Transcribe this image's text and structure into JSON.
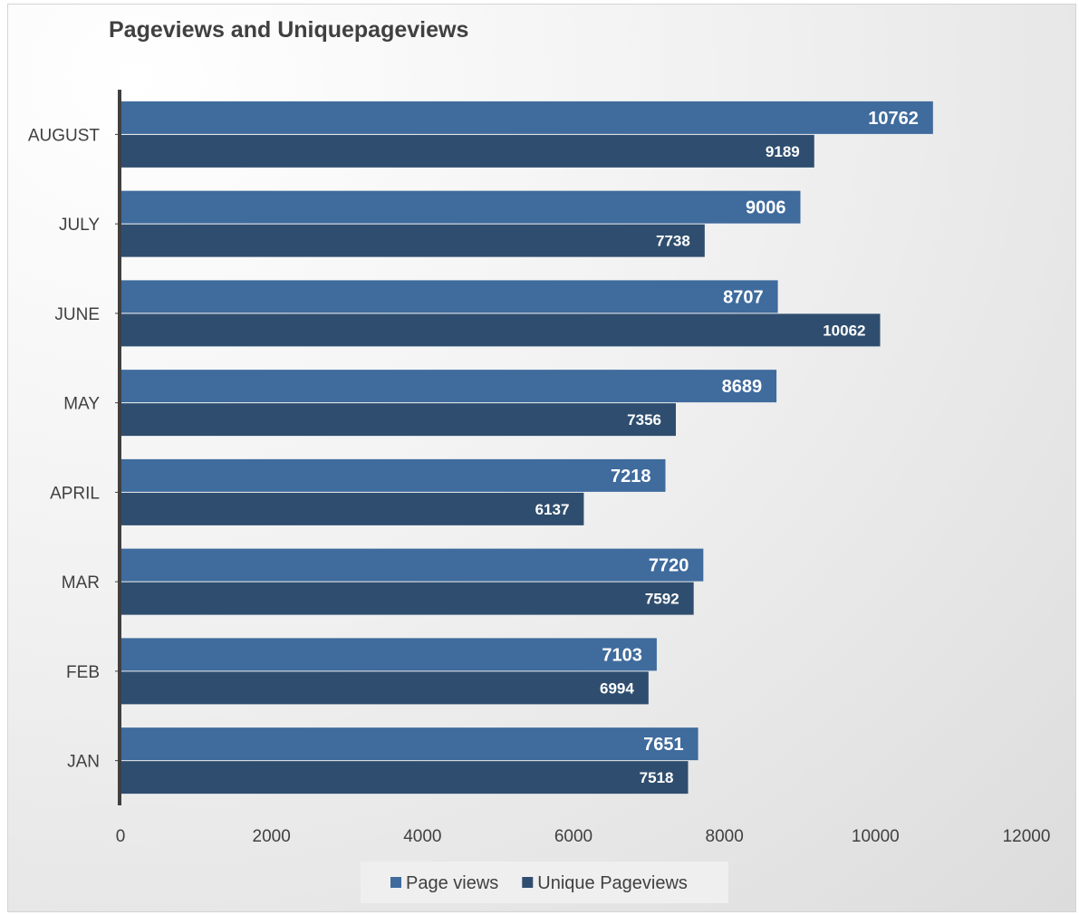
{
  "chart_data": {
    "type": "bar",
    "orientation": "horizontal",
    "title": "Pageviews and Uniquepageviews",
    "categories": [
      "JAN",
      "FEB",
      "MAR",
      "APRIL",
      "MAY",
      "JUNE",
      "JULY",
      "AUGUST"
    ],
    "series": [
      {
        "name": "Page views",
        "values": [
          7651,
          7103,
          7720,
          7218,
          8689,
          8707,
          9006,
          10762
        ]
      },
      {
        "name": "Unique Pageviews",
        "values": [
          7518,
          6994,
          7592,
          6137,
          7356,
          10062,
          7738,
          9189
        ]
      }
    ],
    "xlim": [
      0,
      12000
    ],
    "xticks": [
      0,
      2000,
      4000,
      6000,
      8000,
      10000,
      12000
    ],
    "grid": false,
    "legend_position": "bottom",
    "colors": {
      "Page views": "#3f6b9d",
      "Unique Pageviews": "#2f4e6f"
    }
  }
}
